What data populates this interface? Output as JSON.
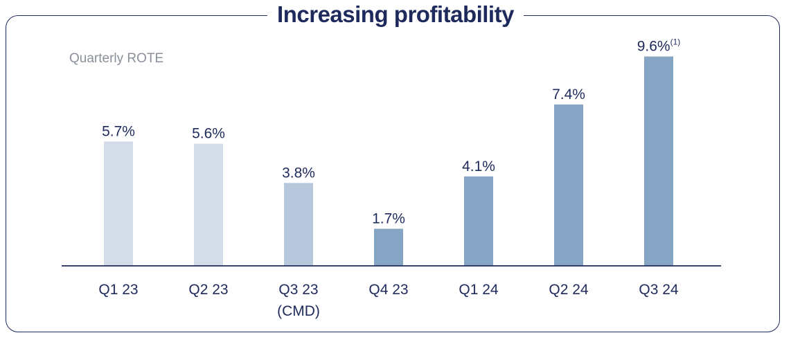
{
  "chart_data": {
    "type": "bar",
    "title": "Increasing profitability",
    "subtitle": "Quarterly ROTE",
    "categories": [
      {
        "line1": "Q1 23",
        "line2": ""
      },
      {
        "line1": "Q2 23",
        "line2": ""
      },
      {
        "line1": "Q3 23",
        "line2": "(CMD)"
      },
      {
        "line1": "Q4 23",
        "line2": ""
      },
      {
        "line1": "Q1 24",
        "line2": ""
      },
      {
        "line1": "Q2 24",
        "line2": ""
      },
      {
        "line1": "Q3 24",
        "line2": ""
      }
    ],
    "values": [
      5.7,
      5.6,
      3.8,
      1.7,
      4.1,
      7.4,
      9.6
    ],
    "labels": [
      "5.7%",
      "5.6%",
      "3.8%",
      "1.7%",
      "4.1%",
      "7.4%",
      "9.6%"
    ],
    "footnotes": [
      "",
      "",
      "",
      "",
      "",
      "",
      "(1)"
    ],
    "colors": [
      "#d3dce8",
      "#d3dce8",
      "#b7c8dc",
      "#86a4c4",
      "#86a4c4",
      "#86a4c4",
      "#86a4c4"
    ],
    "ylim": [
      0,
      10
    ],
    "xlabel": "",
    "ylabel": "",
    "axis_color": "#1f2a5c",
    "grid": false
  }
}
